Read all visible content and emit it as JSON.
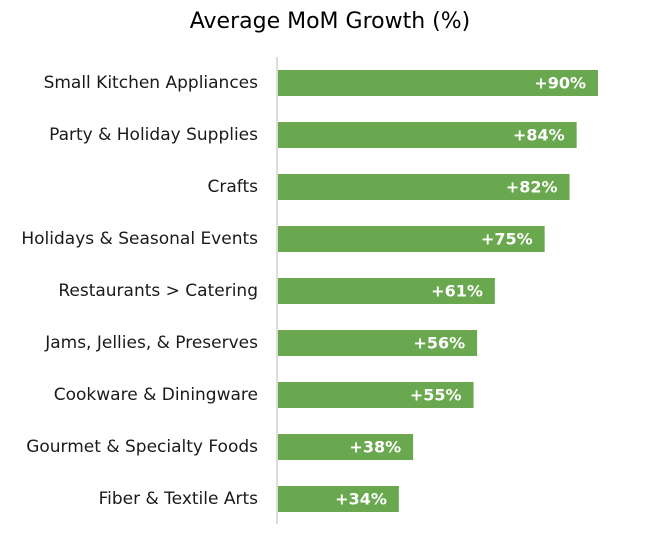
{
  "chart_data": {
    "type": "bar",
    "orientation": "horizontal",
    "title": "Average MoM Growth (%)",
    "xlabel": "",
    "ylabel": "",
    "categories": [
      "Small Kitchen Appliances",
      "Party & Holiday Supplies",
      "Crafts",
      "Holidays & Seasonal Events",
      "Restaurants > Catering",
      "Jams, Jellies, & Preserves",
      "Cookware & Diningware",
      "Gourmet & Specialty Foods",
      "Fiber & Textile Arts"
    ],
    "values": [
      90,
      84,
      82,
      75,
      61,
      56,
      55,
      38,
      34
    ],
    "data_labels": [
      "+90%",
      "+84%",
      "+82%",
      "+75%",
      "+61%",
      "+56%",
      "+55%",
      "+38%",
      "+34%"
    ],
    "xlim": [
      0,
      100
    ],
    "grid": false,
    "legend": "none"
  },
  "colors": {
    "bar": "#6aa84f",
    "axis": "#d0d0d0",
    "label_text": "#ffffff",
    "category_text": "#1a1a1a"
  }
}
